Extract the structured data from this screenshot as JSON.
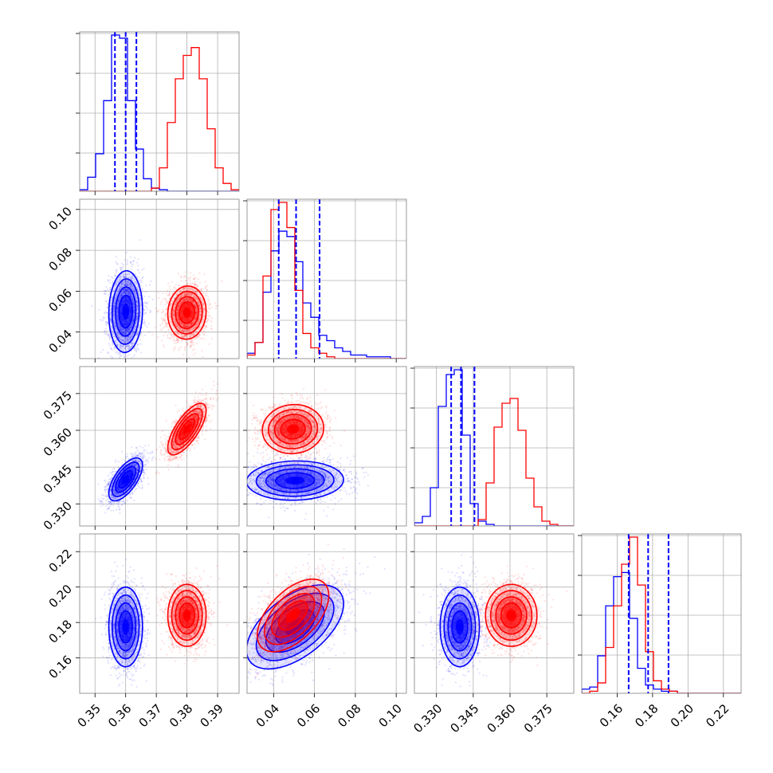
{
  "figure": {
    "type": "corner_plot",
    "series_colors": {
      "a": "#0000ff",
      "b": "#ff0000"
    },
    "quantile_line_color": "#0000ff",
    "grid": true
  },
  "chart_data": [
    {
      "type": "histogram",
      "panel": "hist-p0",
      "xlim": [
        0.345,
        0.397
      ],
      "ticks": [
        0.35,
        0.36,
        0.37,
        0.38,
        0.39
      ],
      "tick_labels": [
        "0.35",
        "0.36",
        "0.37",
        "0.38",
        "0.39"
      ],
      "show_tick_labels": false,
      "quantile_lines": [
        0.3565,
        0.36,
        0.3635
      ],
      "series": [
        {
          "color": "#0000ff",
          "bin_start": 0.345,
          "bin_width": 0.0026,
          "counts": [
            0.01,
            0.09,
            0.24,
            0.58,
            1.0,
            0.98,
            0.58,
            0.27,
            0.08,
            0.02,
            0.01,
            0,
            0,
            0,
            0,
            0,
            0,
            0,
            0,
            0
          ]
        },
        {
          "color": "#ff0000",
          "bin_start": 0.345,
          "bin_width": 0.0026,
          "counts": [
            0,
            0,
            0,
            0,
            0,
            0,
            0,
            0,
            0,
            0.02,
            0.15,
            0.44,
            0.72,
            0.87,
            0.92,
            0.72,
            0.4,
            0.15,
            0.05,
            0.01
          ]
        }
      ]
    },
    {
      "type": "histogram",
      "panel": "hist-p1",
      "xlim": [
        0.027,
        0.105
      ],
      "ticks": [
        0.04,
        0.06,
        0.08,
        0.1
      ],
      "tick_labels": [
        "0.04",
        "0.06",
        "0.08",
        "0.10"
      ],
      "show_tick_labels": false,
      "quantile_lines": [
        0.0425,
        0.051,
        0.0625
      ],
      "series": [
        {
          "color": "#0000ff",
          "bin_start": 0.027,
          "bin_width": 0.0039,
          "counts": [
            0.03,
            0.09,
            0.37,
            0.6,
            0.71,
            0.68,
            0.54,
            0.31,
            0.23,
            0.13,
            0.1,
            0.06,
            0.04,
            0.02,
            0.02,
            0.01,
            0.01,
            0.01,
            0,
            0
          ]
        },
        {
          "color": "#ff0000",
          "bin_start": 0.027,
          "bin_width": 0.0039,
          "counts": [
            0.02,
            0.09,
            0.46,
            0.83,
            0.87,
            0.73,
            0.38,
            0.14,
            0.06,
            0.03,
            0.01,
            0,
            0,
            0,
            0,
            0,
            0,
            0,
            0,
            0
          ]
        }
      ]
    },
    {
      "type": "histogram",
      "panel": "hist-p2",
      "xlim": [
        0.321,
        0.386
      ],
      "ticks": [
        0.33,
        0.345,
        0.36,
        0.375
      ],
      "tick_labels": [
        "0.330",
        "0.345",
        "0.360",
        "0.375"
      ],
      "show_tick_labels": false,
      "quantile_lines": [
        0.336,
        0.34,
        0.3455
      ],
      "series": [
        {
          "color": "#0000ff",
          "bin_start": 0.321,
          "bin_width": 0.00325,
          "counts": [
            0.02,
            0.06,
            0.24,
            0.75,
            0.95,
            0.98,
            0.57,
            0.14,
            0.03,
            0.01,
            0,
            0,
            0,
            0,
            0,
            0,
            0,
            0,
            0,
            0
          ]
        },
        {
          "color": "#ff0000",
          "bin_start": 0.321,
          "bin_width": 0.00325,
          "counts": [
            0,
            0,
            0,
            0,
            0,
            0,
            0,
            0,
            0.04,
            0.27,
            0.62,
            0.77,
            0.8,
            0.6,
            0.3,
            0.12,
            0.03,
            0.01,
            0,
            0
          ]
        }
      ]
    },
    {
      "type": "histogram",
      "panel": "hist-p3",
      "xlim": [
        0.14,
        0.23
      ],
      "ticks": [
        0.16,
        0.18,
        0.2,
        0.22
      ],
      "tick_labels": [
        "0.16",
        "0.18",
        "0.20",
        "0.22"
      ],
      "show_tick_labels": true,
      "quantile_lines": [
        0.1665,
        0.1775,
        0.189
      ],
      "series": [
        {
          "color": "#0000ff",
          "bin_start": 0.14,
          "bin_width": 0.0045,
          "counts": [
            0.02,
            0.03,
            0.18,
            0.42,
            0.56,
            0.58,
            0.36,
            0.12,
            0.04,
            0.02,
            0.01,
            0.01,
            0,
            0,
            0,
            0,
            0,
            0,
            0,
            0
          ]
        },
        {
          "color": "#ff0000",
          "bin_start": 0.14,
          "bin_width": 0.0045,
          "counts": [
            0,
            0.01,
            0.05,
            0.22,
            0.42,
            0.62,
            0.75,
            0.52,
            0.2,
            0.06,
            0.02,
            0.01,
            0,
            0,
            0,
            0,
            0,
            0,
            0,
            0
          ]
        }
      ]
    },
    {
      "type": "scatter_contour",
      "panel": "joint-p0-p1",
      "x_param": 0,
      "y_param": 1,
      "yticks": [
        0.04,
        0.06,
        0.08,
        0.1
      ],
      "ytick_labels": [
        "0.04",
        "0.06",
        "0.08",
        "0.10"
      ],
      "show_x_labels": false,
      "show_y_labels": true,
      "series": [
        {
          "color": "#0000ff",
          "center": [
            0.36,
            0.05
          ],
          "sigma": [
            0.0022,
            0.008
          ],
          "rho": 0.05,
          "n": 2200
        },
        {
          "color": "#ff0000",
          "center": [
            0.38,
            0.0495
          ],
          "sigma": [
            0.0025,
            0.0052
          ],
          "rho": 0.05,
          "n": 2200
        }
      ]
    },
    {
      "type": "scatter_contour",
      "panel": "joint-p0-p2",
      "x_param": 0,
      "y_param": 2,
      "yticks": [
        0.33,
        0.345,
        0.36,
        0.375
      ],
      "ytick_labels": [
        "0.330",
        "0.345",
        "0.360",
        "0.375"
      ],
      "show_x_labels": false,
      "show_y_labels": true,
      "series": [
        {
          "color": "#0000ff",
          "center": [
            0.36,
            0.34
          ],
          "sigma": [
            0.0022,
            0.0035
          ],
          "rho": 0.65,
          "n": 2200
        },
        {
          "color": "#ff0000",
          "center": [
            0.38,
            0.3605
          ],
          "sigma": [
            0.0025,
            0.0042
          ],
          "rho": 0.72,
          "n": 2200
        }
      ]
    },
    {
      "type": "scatter_contour",
      "panel": "joint-p1-p2",
      "x_param": 1,
      "y_param": 2,
      "show_x_labels": false,
      "show_y_labels": false,
      "series": [
        {
          "color": "#0000ff",
          "center": [
            0.0505,
            0.3395
          ],
          "sigma": [
            0.0095,
            0.0032
          ],
          "rho": 0.05,
          "n": 2200
        },
        {
          "color": "#ff0000",
          "center": [
            0.0495,
            0.3605
          ],
          "sigma": [
            0.006,
            0.004
          ],
          "rho": 0.05,
          "n": 2200
        }
      ]
    },
    {
      "type": "scatter_contour",
      "panel": "joint-p0-p3",
      "x_param": 0,
      "y_param": 3,
      "yticks": [
        0.16,
        0.18,
        0.2,
        0.22
      ],
      "ytick_labels": [
        "0.16",
        "0.18",
        "0.20",
        "0.22"
      ],
      "show_x_labels": true,
      "show_y_labels": true,
      "series": [
        {
          "color": "#0000ff",
          "center": [
            0.36,
            0.1775
          ],
          "sigma": [
            0.0022,
            0.009
          ],
          "rho": 0.0,
          "n": 2200
        },
        {
          "color": "#ff0000",
          "center": [
            0.38,
            0.184
          ],
          "sigma": [
            0.0025,
            0.007
          ],
          "rho": 0.0,
          "n": 2200
        }
      ]
    },
    {
      "type": "scatter_contour",
      "panel": "joint-p1-p3",
      "x_param": 1,
      "y_param": 3,
      "show_x_labels": true,
      "show_y_labels": false,
      "series": [
        {
          "color": "#0000ff",
          "center": [
            0.0505,
            0.1775
          ],
          "sigma": [
            0.0095,
            0.0095
          ],
          "rho": 0.55,
          "n": 2200
        },
        {
          "color": "#ff0000",
          "center": [
            0.0495,
            0.184
          ],
          "sigma": [
            0.007,
            0.0082
          ],
          "rho": 0.55,
          "n": 2200
        }
      ]
    },
    {
      "type": "scatter_contour",
      "panel": "joint-p2-p3",
      "x_param": 2,
      "y_param": 3,
      "show_x_labels": true,
      "show_y_labels": false,
      "series": [
        {
          "color": "#0000ff",
          "center": [
            0.3395,
            0.1775
          ],
          "sigma": [
            0.0032,
            0.009
          ],
          "rho": 0.0,
          "n": 2200
        },
        {
          "color": "#ff0000",
          "center": [
            0.3605,
            0.184
          ],
          "sigma": [
            0.0042,
            0.007
          ],
          "rho": 0.0,
          "n": 2200
        }
      ]
    }
  ]
}
